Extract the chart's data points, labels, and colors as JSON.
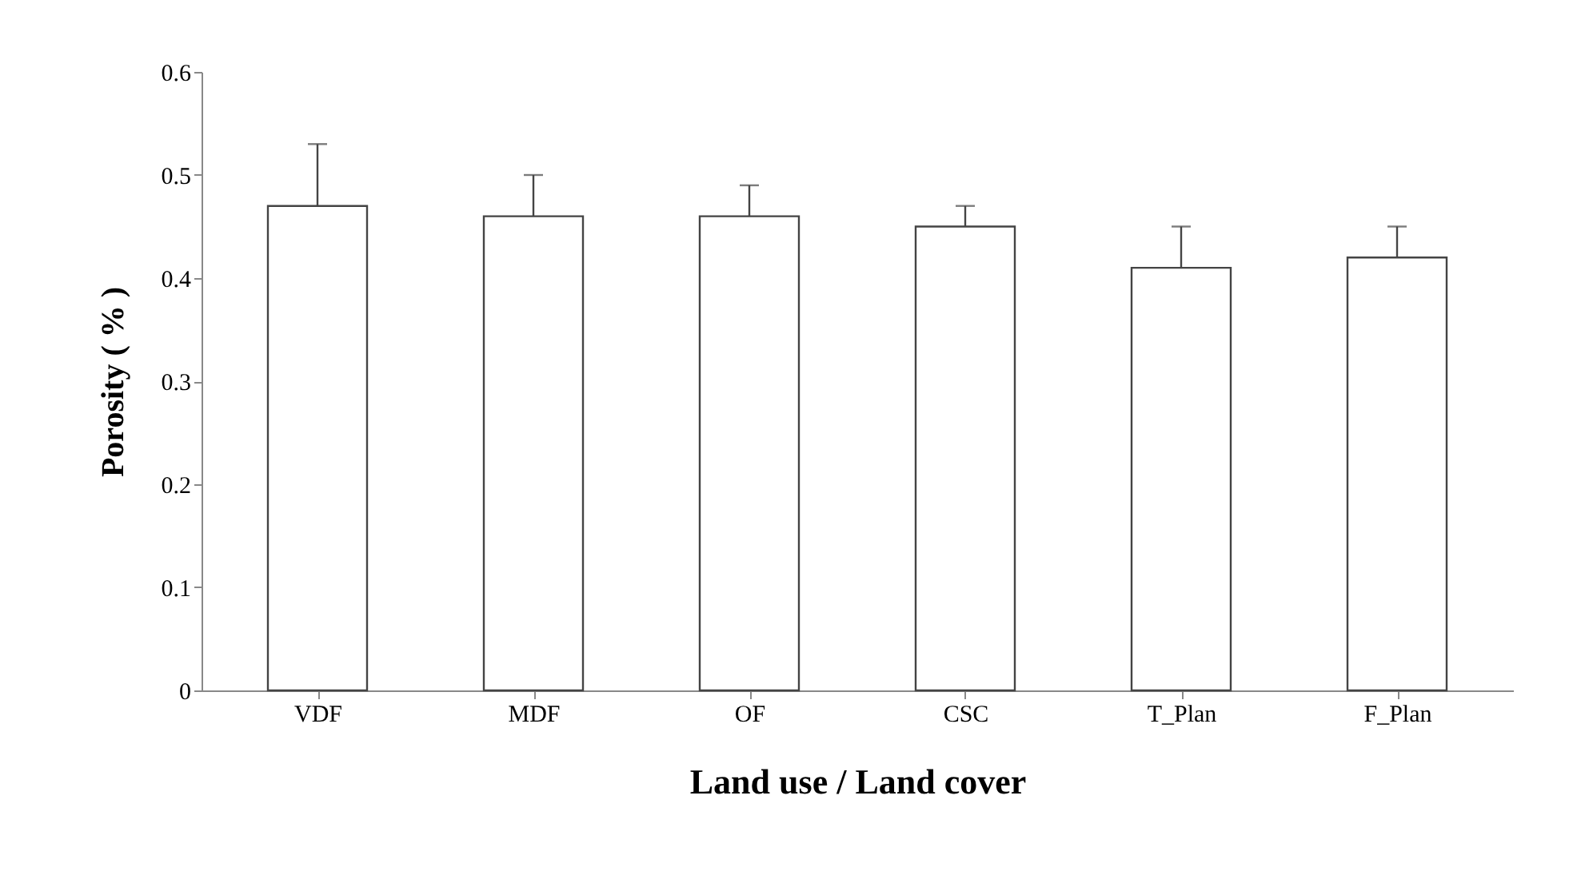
{
  "chart_data": {
    "type": "bar",
    "xlabel": "Land use / Land cover",
    "ylabel": "Porosity ( % )",
    "categories": [
      "VDF",
      "MDF",
      "OF",
      "CSC",
      "T_Plan",
      "F_Plan"
    ],
    "values": [
      0.47,
      0.46,
      0.46,
      0.45,
      0.41,
      0.42
    ],
    "errors": [
      [
        0.47,
        0.53
      ],
      [
        0.46,
        0.5
      ],
      [
        0.46,
        0.49
      ],
      [
        0.45,
        0.47
      ],
      [
        0.41,
        0.45
      ],
      [
        0.42,
        0.45
      ]
    ],
    "color": "#ffffff",
    "ylim": [
      0,
      0.6
    ],
    "yticks": [
      0,
      0.1,
      0.2,
      0.3,
      0.4,
      0.5,
      0.6
    ],
    "grid": false
  }
}
